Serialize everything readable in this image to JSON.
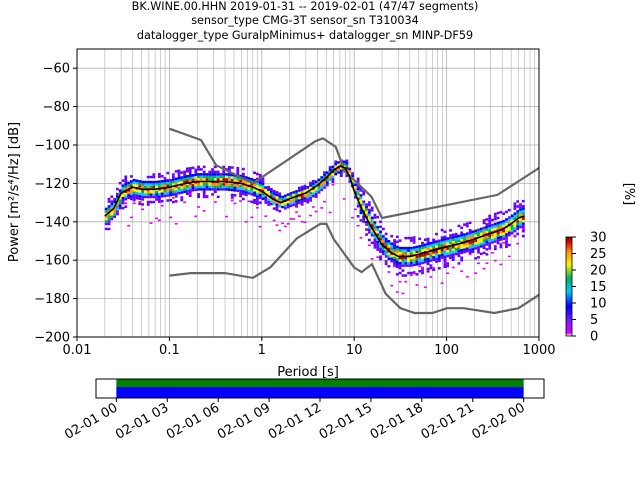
{
  "title_lines": [
    "BK.WINE.00.HHN   2019-01-31 -- 2019-02-01  (47/47 segments)",
    "sensor_type CMG-3T sensor_sn T310034",
    "datalogger_type GuralpMinimus+ datalogger_sn MINP-DF59"
  ],
  "chart_data": [
    {
      "type": "heatmap",
      "title": "BK.WINE.00.HHN   2019-01-31 -- 2019-02-01  (47/47 segments)",
      "xlabel": "Period [s]",
      "ylabel": "Power [m²/s⁴/Hz] [dB]",
      "xscale": "log",
      "xlim": [
        0.01,
        1000
      ],
      "ylim": [
        -200,
        -50
      ],
      "x_ticks": [
        "0.01",
        "0.1",
        "1",
        "10",
        "100",
        "1000"
      ],
      "y_ticks": [
        "−200",
        "−180",
        "−160",
        "−140",
        "−120",
        "−100",
        "−80",
        "−60"
      ],
      "x_tick_values": [
        0.01,
        0.1,
        1,
        10,
        100,
        1000
      ],
      "y_tick_values": [
        -200,
        -180,
        -160,
        -140,
        -120,
        -100,
        -80,
        -60
      ],
      "grid": true,
      "colorbar": {
        "label": "[%]",
        "range": [
          0,
          30
        ],
        "ticks": [
          "0",
          "5",
          "10",
          "15",
          "20",
          "25",
          "30"
        ],
        "tick_values": [
          0,
          5,
          10,
          15,
          20,
          25,
          30
        ]
      },
      "series": [
        {
          "role": "new_high_noise_model",
          "color": "#666666",
          "x": [
            0.1,
            0.22,
            0.32,
            0.8,
            3.8,
            4.6,
            6.3,
            7.9,
            15.4,
            20,
            354.8,
            1000
          ],
          "y": [
            -91.5,
            -97.4,
            -110.5,
            -120,
            -98,
            -96.5,
            -101,
            -113.5,
            -127,
            -138,
            -126,
            -112
          ]
        },
        {
          "role": "new_low_noise_model",
          "color": "#666666",
          "x": [
            0.1,
            0.17,
            0.4,
            0.8,
            1.24,
            2.4,
            4.3,
            5,
            6,
            10,
            12,
            15.6,
            21.9,
            31.6,
            45,
            70,
            101,
            154,
            328,
            600,
            1000
          ],
          "y": [
            -168,
            -166.7,
            -166.7,
            -169.2,
            -163.7,
            -148.6,
            -141.1,
            -141.1,
            -149,
            -163.8,
            -166.2,
            -162.1,
            -177.5,
            -185,
            -187.5,
            -187.5,
            -185,
            -185,
            -187.5,
            -185,
            -178
          ]
        },
        {
          "role": "median_psd",
          "color": "#000000",
          "x": [
            0.02,
            0.025,
            0.03,
            0.04,
            0.05,
            0.07,
            0.1,
            0.15,
            0.2,
            0.3,
            0.4,
            0.6,
            0.8,
            1,
            1.3,
            1.6,
            2,
            3,
            4,
            5,
            6,
            7,
            8,
            9,
            10,
            12,
            15,
            20,
            25,
            30,
            40,
            50,
            70,
            100,
            150,
            200,
            300,
            400,
            500,
            600,
            700
          ],
          "y": [
            -137,
            -133,
            -125,
            -122,
            -123,
            -123,
            -122,
            -120,
            -119,
            -119,
            -119,
            -120,
            -122,
            -124,
            -128,
            -130,
            -128,
            -125,
            -121,
            -117,
            -113,
            -111,
            -112,
            -117,
            -124,
            -133,
            -142,
            -152,
            -156,
            -158,
            -158,
            -157,
            -155,
            -153,
            -151,
            -149,
            -146,
            -144,
            -141,
            -138,
            -137
          ]
        }
      ],
      "bottom_panel": {
        "type": "timeline",
        "x_ticks": [
          "02-01 00",
          "02-01 03",
          "02-01 06",
          "02-01 09",
          "02-01 12",
          "02-01 15",
          "02-01 18",
          "02-01 21",
          "02-02 00"
        ],
        "x_tick_hours": [
          0,
          3,
          6,
          9,
          12,
          15,
          18,
          21,
          24
        ],
        "xlim_hours": [
          -1.2,
          25.2
        ],
        "coverage_hours": [
          0,
          24
        ],
        "bands": [
          {
            "name": "data",
            "color": "#008000"
          },
          {
            "name": "data",
            "color": "#0000ff"
          }
        ]
      }
    }
  ]
}
